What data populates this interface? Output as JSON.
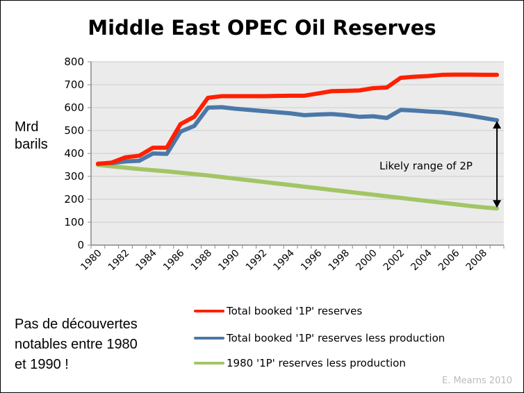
{
  "chart_data": {
    "type": "line",
    "title": "Middle East OPEC Oil Reserves",
    "ylabel": "Mrd barils",
    "ylabel_lines": [
      "Mrd",
      "barils"
    ],
    "xlabel": "",
    "ylim": [
      0,
      800
    ],
    "yticks": [
      0,
      100,
      200,
      300,
      400,
      500,
      600,
      700,
      800
    ],
    "x": [
      1980,
      1981,
      1982,
      1983,
      1984,
      1985,
      1986,
      1987,
      1988,
      1989,
      1990,
      1991,
      1992,
      1993,
      1994,
      1995,
      1996,
      1997,
      1998,
      1999,
      2000,
      2001,
      2002,
      2003,
      2004,
      2005,
      2006,
      2007,
      2008,
      2009
    ],
    "xtick_labels": [
      "1980",
      "1982",
      "1984",
      "1986",
      "1988",
      "1990",
      "1992",
      "1994",
      "1996",
      "1998",
      "2000",
      "2002",
      "2004",
      "2006",
      "2008"
    ],
    "grid": true,
    "plot_background": "#ebebeb",
    "legend_position": "bottom-right",
    "series": [
      {
        "name": "Total booked '1P' reserves",
        "color": "#ff2000",
        "values": [
          355,
          360,
          383,
          390,
          425,
          425,
          528,
          560,
          643,
          650,
          650,
          650,
          650,
          651,
          652,
          652,
          662,
          672,
          673,
          675,
          685,
          688,
          730,
          735,
          738,
          743,
          744,
          744,
          743,
          743
        ]
      },
      {
        "name": "Total booked '1P' reserves less production",
        "color": "#4a78a8",
        "values": [
          355,
          358,
          365,
          368,
          400,
          398,
          495,
          520,
          600,
          602,
          595,
          590,
          585,
          580,
          575,
          567,
          570,
          572,
          567,
          560,
          562,
          555,
          590,
          587,
          583,
          580,
          573,
          565,
          555,
          545
        ]
      },
      {
        "name": "1980 '1P' reserves less production",
        "color": "#a2c565",
        "values": [
          350,
          344,
          338,
          332,
          327,
          322,
          316,
          310,
          304,
          297,
          290,
          283,
          276,
          269,
          262,
          255,
          248,
          241,
          234,
          227,
          220,
          213,
          206,
          199,
          192,
          185,
          178,
          171,
          165,
          160
        ]
      }
    ],
    "annotation": {
      "text": "Likely range of 2P",
      "year": 2009,
      "from": 545,
      "to": 160
    }
  },
  "note_lines": [
    "Pas de découvertes",
    "notables entre 1980",
    "et 1990 !"
  ],
  "credit": "E. Mearns 2010"
}
